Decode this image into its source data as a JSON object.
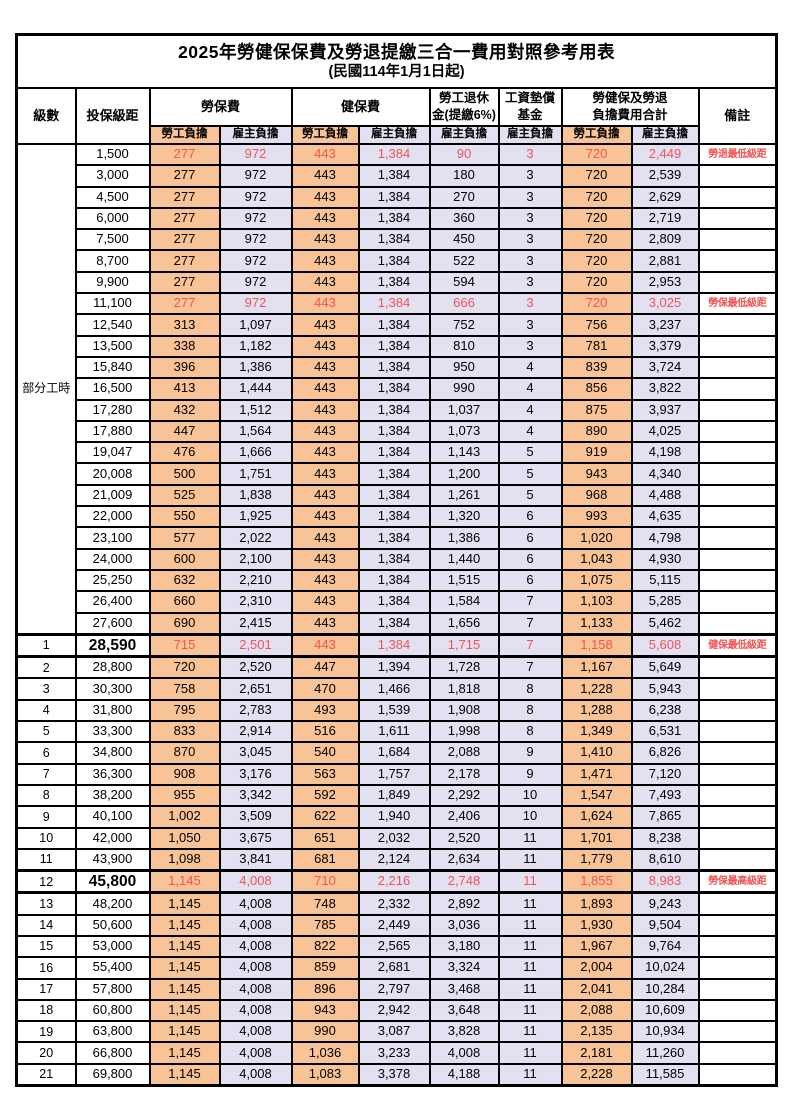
{
  "title": "2025年勞健保保費及勞退提繳三合一費用對照參考用表",
  "subtitle": "(民國114年1月1日起)",
  "colors": {
    "employee_bg": "#F8C396",
    "employer_bg": "#E3E0F2",
    "highlight_red": "#F05454",
    "border": "#000000"
  },
  "header": {
    "level": "級數",
    "bracket": "投保級距",
    "labor": "勞保費",
    "health": "健保費",
    "pension": [
      "勞工退休",
      "金(提繳6%)"
    ],
    "wage_fund": [
      "工資墊償",
      "基金"
    ],
    "total": [
      "勞健保及勞退",
      "負擔費用合計"
    ],
    "note": "備註",
    "employee": "勞工負擔",
    "employer": "雇主負擔"
  },
  "part_time": {
    "label": "部分工時",
    "span": 23
  },
  "rows": [
    {
      "lv": "",
      "b": "1,500",
      "v": [
        "277",
        "972",
        "443",
        "1,384",
        "90",
        "3",
        "720",
        "2,449"
      ],
      "n": "勞退最低級距",
      "red": true
    },
    {
      "lv": "",
      "b": "3,000",
      "v": [
        "277",
        "972",
        "443",
        "1,384",
        "180",
        "3",
        "720",
        "2,539"
      ],
      "n": ""
    },
    {
      "lv": "",
      "b": "4,500",
      "v": [
        "277",
        "972",
        "443",
        "1,384",
        "270",
        "3",
        "720",
        "2,629"
      ],
      "n": ""
    },
    {
      "lv": "",
      "b": "6,000",
      "v": [
        "277",
        "972",
        "443",
        "1,384",
        "360",
        "3",
        "720",
        "2,719"
      ],
      "n": ""
    },
    {
      "lv": "",
      "b": "7,500",
      "v": [
        "277",
        "972",
        "443",
        "1,384",
        "450",
        "3",
        "720",
        "2,809"
      ],
      "n": ""
    },
    {
      "lv": "",
      "b": "8,700",
      "v": [
        "277",
        "972",
        "443",
        "1,384",
        "522",
        "3",
        "720",
        "2,881"
      ],
      "n": ""
    },
    {
      "lv": "",
      "b": "9,900",
      "v": [
        "277",
        "972",
        "443",
        "1,384",
        "594",
        "3",
        "720",
        "2,953"
      ],
      "n": ""
    },
    {
      "lv": "",
      "b": "11,100",
      "v": [
        "277",
        "972",
        "443",
        "1,384",
        "666",
        "3",
        "720",
        "3,025"
      ],
      "n": "勞保最低級距",
      "red": true
    },
    {
      "lv": "",
      "b": "12,540",
      "v": [
        "313",
        "1,097",
        "443",
        "1,384",
        "752",
        "3",
        "756",
        "3,237"
      ],
      "n": ""
    },
    {
      "lv": "",
      "b": "13,500",
      "v": [
        "338",
        "1,182",
        "443",
        "1,384",
        "810",
        "3",
        "781",
        "3,379"
      ],
      "n": ""
    },
    {
      "lv": "",
      "b": "15,840",
      "v": [
        "396",
        "1,386",
        "443",
        "1,384",
        "950",
        "4",
        "839",
        "3,724"
      ],
      "n": ""
    },
    {
      "lv": "",
      "b": "16,500",
      "v": [
        "413",
        "1,444",
        "443",
        "1,384",
        "990",
        "4",
        "856",
        "3,822"
      ],
      "n": ""
    },
    {
      "lv": "",
      "b": "17,280",
      "v": [
        "432",
        "1,512",
        "443",
        "1,384",
        "1,037",
        "4",
        "875",
        "3,937"
      ],
      "n": ""
    },
    {
      "lv": "",
      "b": "17,880",
      "v": [
        "447",
        "1,564",
        "443",
        "1,384",
        "1,073",
        "4",
        "890",
        "4,025"
      ],
      "n": ""
    },
    {
      "lv": "",
      "b": "19,047",
      "v": [
        "476",
        "1,666",
        "443",
        "1,384",
        "1,143",
        "5",
        "919",
        "4,198"
      ],
      "n": ""
    },
    {
      "lv": "",
      "b": "20,008",
      "v": [
        "500",
        "1,751",
        "443",
        "1,384",
        "1,200",
        "5",
        "943",
        "4,340"
      ],
      "n": ""
    },
    {
      "lv": "",
      "b": "21,009",
      "v": [
        "525",
        "1,838",
        "443",
        "1,384",
        "1,261",
        "5",
        "968",
        "4,488"
      ],
      "n": ""
    },
    {
      "lv": "",
      "b": "22,000",
      "v": [
        "550",
        "1,925",
        "443",
        "1,384",
        "1,320",
        "6",
        "993",
        "4,635"
      ],
      "n": ""
    },
    {
      "lv": "",
      "b": "23,100",
      "v": [
        "577",
        "2,022",
        "443",
        "1,384",
        "1,386",
        "6",
        "1,020",
        "4,798"
      ],
      "n": ""
    },
    {
      "lv": "",
      "b": "24,000",
      "v": [
        "600",
        "2,100",
        "443",
        "1,384",
        "1,440",
        "6",
        "1,043",
        "4,930"
      ],
      "n": ""
    },
    {
      "lv": "",
      "b": "25,250",
      "v": [
        "632",
        "2,210",
        "443",
        "1,384",
        "1,515",
        "6",
        "1,075",
        "5,115"
      ],
      "n": ""
    },
    {
      "lv": "",
      "b": "26,400",
      "v": [
        "660",
        "2,310",
        "443",
        "1,384",
        "1,584",
        "7",
        "1,103",
        "5,285"
      ],
      "n": ""
    },
    {
      "lv": "",
      "b": "27,600",
      "v": [
        "690",
        "2,415",
        "443",
        "1,384",
        "1,656",
        "7",
        "1,133",
        "5,462"
      ],
      "n": ""
    },
    {
      "lv": "1",
      "b": "28,590",
      "v": [
        "715",
        "2,501",
        "443",
        "1,384",
        "1,715",
        "7",
        "1,158",
        "5,608"
      ],
      "n": "健保最低級距",
      "red": true,
      "big": true,
      "sep": true
    },
    {
      "lv": "2",
      "b": "28,800",
      "v": [
        "720",
        "2,520",
        "447",
        "1,394",
        "1,728",
        "7",
        "1,167",
        "5,649"
      ],
      "n": ""
    },
    {
      "lv": "3",
      "b": "30,300",
      "v": [
        "758",
        "2,651",
        "470",
        "1,466",
        "1,818",
        "8",
        "1,228",
        "5,943"
      ],
      "n": ""
    },
    {
      "lv": "4",
      "b": "31,800",
      "v": [
        "795",
        "2,783",
        "493",
        "1,539",
        "1,908",
        "8",
        "1,288",
        "6,238"
      ],
      "n": ""
    },
    {
      "lv": "5",
      "b": "33,300",
      "v": [
        "833",
        "2,914",
        "516",
        "1,611",
        "1,998",
        "8",
        "1,349",
        "6,531"
      ],
      "n": ""
    },
    {
      "lv": "6",
      "b": "34,800",
      "v": [
        "870",
        "3,045",
        "540",
        "1,684",
        "2,088",
        "9",
        "1,410",
        "6,826"
      ],
      "n": ""
    },
    {
      "lv": "7",
      "b": "36,300",
      "v": [
        "908",
        "3,176",
        "563",
        "1,757",
        "2,178",
        "9",
        "1,471",
        "7,120"
      ],
      "n": ""
    },
    {
      "lv": "8",
      "b": "38,200",
      "v": [
        "955",
        "3,342",
        "592",
        "1,849",
        "2,292",
        "10",
        "1,547",
        "7,493"
      ],
      "n": ""
    },
    {
      "lv": "9",
      "b": "40,100",
      "v": [
        "1,002",
        "3,509",
        "622",
        "1,940",
        "2,406",
        "10",
        "1,624",
        "7,865"
      ],
      "n": ""
    },
    {
      "lv": "10",
      "b": "42,000",
      "v": [
        "1,050",
        "3,675",
        "651",
        "2,032",
        "2,520",
        "11",
        "1,701",
        "8,238"
      ],
      "n": ""
    },
    {
      "lv": "11",
      "b": "43,900",
      "v": [
        "1,098",
        "3,841",
        "681",
        "2,124",
        "2,634",
        "11",
        "1,779",
        "8,610"
      ],
      "n": ""
    },
    {
      "lv": "12",
      "b": "45,800",
      "v": [
        "1,145",
        "4,008",
        "710",
        "2,216",
        "2,748",
        "11",
        "1,855",
        "8,983"
      ],
      "n": "勞保最高級距",
      "red": true,
      "big": true,
      "sep": true
    },
    {
      "lv": "13",
      "b": "48,200",
      "v": [
        "1,145",
        "4,008",
        "748",
        "2,332",
        "2,892",
        "11",
        "1,893",
        "9,243"
      ],
      "n": ""
    },
    {
      "lv": "14",
      "b": "50,600",
      "v": [
        "1,145",
        "4,008",
        "785",
        "2,449",
        "3,036",
        "11",
        "1,930",
        "9,504"
      ],
      "n": ""
    },
    {
      "lv": "15",
      "b": "53,000",
      "v": [
        "1,145",
        "4,008",
        "822",
        "2,565",
        "3,180",
        "11",
        "1,967",
        "9,764"
      ],
      "n": ""
    },
    {
      "lv": "16",
      "b": "55,400",
      "v": [
        "1,145",
        "4,008",
        "859",
        "2,681",
        "3,324",
        "11",
        "2,004",
        "10,024"
      ],
      "n": ""
    },
    {
      "lv": "17",
      "b": "57,800",
      "v": [
        "1,145",
        "4,008",
        "896",
        "2,797",
        "3,468",
        "11",
        "2,041",
        "10,284"
      ],
      "n": ""
    },
    {
      "lv": "18",
      "b": "60,800",
      "v": [
        "1,145",
        "4,008",
        "943",
        "2,942",
        "3,648",
        "11",
        "2,088",
        "10,609"
      ],
      "n": ""
    },
    {
      "lv": "19",
      "b": "63,800",
      "v": [
        "1,145",
        "4,008",
        "990",
        "3,087",
        "3,828",
        "11",
        "2,135",
        "10,934"
      ],
      "n": ""
    },
    {
      "lv": "20",
      "b": "66,800",
      "v": [
        "1,145",
        "4,008",
        "1,036",
        "3,233",
        "4,008",
        "11",
        "2,181",
        "11,260"
      ],
      "n": ""
    },
    {
      "lv": "21",
      "b": "69,800",
      "v": [
        "1,145",
        "4,008",
        "1,083",
        "3,378",
        "4,188",
        "11",
        "2,228",
        "11,585"
      ],
      "n": ""
    }
  ]
}
